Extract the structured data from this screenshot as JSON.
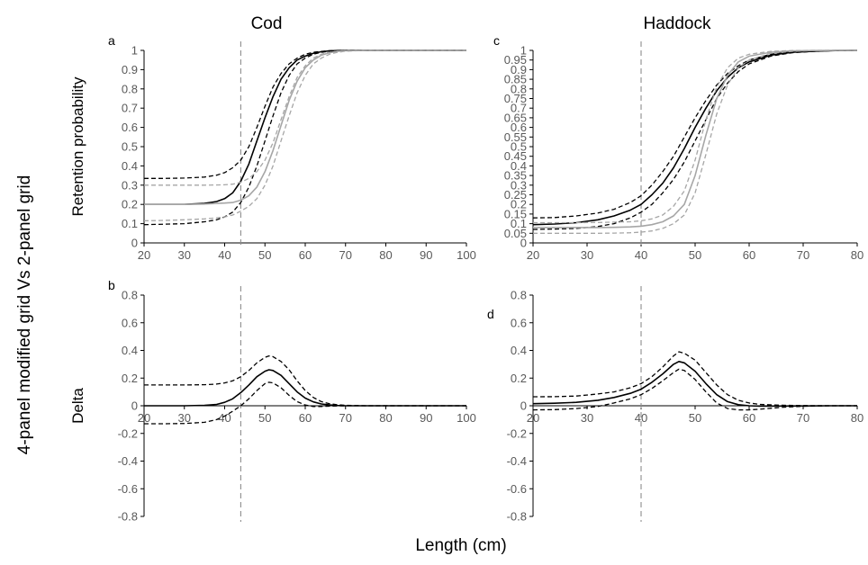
{
  "figure": {
    "side_label": "4-panel modified grid Vs 2-panel grid",
    "xlabel": "Length (cm)",
    "column_titles": [
      "Cod",
      "Haddock"
    ]
  },
  "chart_data": [
    {
      "id": "a",
      "type": "line",
      "panel_label": "a",
      "title": "Cod",
      "ylabel": "Retention probability",
      "xlabel": "",
      "xlim": [
        20,
        100
      ],
      "ylim": [
        0,
        1
      ],
      "xticks": [
        20,
        30,
        40,
        50,
        60,
        70,
        80,
        90,
        100
      ],
      "yticks": [
        0,
        0.1,
        0.2,
        0.3,
        0.4,
        0.5,
        0.6,
        0.7,
        0.8,
        0.9,
        1
      ],
      "ytick_labels": [
        "0",
        "0.1",
        "0.2",
        "0.3",
        "0.4",
        "0.5",
        "0.6",
        "0.7",
        "0.8",
        "0.9",
        "1"
      ],
      "vline": 44,
      "grid": false,
      "x": [
        20,
        25,
        30,
        35,
        38,
        40,
        42,
        44,
        46,
        48,
        50,
        52,
        54,
        56,
        58,
        60,
        62,
        64,
        66,
        68,
        70,
        75,
        80,
        90,
        100
      ],
      "series": [
        {
          "style": "black-solid",
          "values": [
            0.2,
            0.2,
            0.2,
            0.205,
            0.215,
            0.23,
            0.26,
            0.32,
            0.41,
            0.53,
            0.65,
            0.76,
            0.85,
            0.91,
            0.95,
            0.97,
            0.985,
            0.993,
            0.997,
            0.999,
            1,
            1,
            1,
            1,
            1
          ]
        },
        {
          "style": "black-dashed",
          "values": [
            0.335,
            0.335,
            0.337,
            0.342,
            0.352,
            0.365,
            0.39,
            0.43,
            0.5,
            0.6,
            0.71,
            0.81,
            0.88,
            0.93,
            0.96,
            0.98,
            0.99,
            0.995,
            0.998,
            0.999,
            1,
            1,
            1,
            1,
            1
          ]
        },
        {
          "style": "black-dashed",
          "values": [
            0.095,
            0.097,
            0.1,
            0.11,
            0.12,
            0.135,
            0.16,
            0.21,
            0.29,
            0.4,
            0.53,
            0.66,
            0.78,
            0.87,
            0.93,
            0.96,
            0.98,
            0.99,
            0.995,
            0.998,
            1,
            1,
            1,
            1,
            1
          ]
        },
        {
          "style": "gray-solid",
          "values": [
            0.2,
            0.2,
            0.2,
            0.202,
            0.205,
            0.207,
            0.21,
            0.222,
            0.245,
            0.29,
            0.37,
            0.48,
            0.61,
            0.74,
            0.84,
            0.91,
            0.95,
            0.975,
            0.988,
            0.995,
            0.998,
            1,
            1,
            1,
            1
          ]
        },
        {
          "style": "gray-dashed",
          "values": [
            0.3,
            0.3,
            0.3,
            0.3,
            0.301,
            0.302,
            0.305,
            0.315,
            0.335,
            0.37,
            0.43,
            0.52,
            0.64,
            0.76,
            0.86,
            0.92,
            0.96,
            0.98,
            0.99,
            0.996,
            0.999,
            1,
            1,
            1,
            1
          ]
        },
        {
          "style": "gray-dashed",
          "values": [
            0.115,
            0.117,
            0.12,
            0.125,
            0.13,
            0.135,
            0.145,
            0.165,
            0.19,
            0.23,
            0.3,
            0.4,
            0.53,
            0.66,
            0.78,
            0.87,
            0.93,
            0.96,
            0.98,
            0.99,
            0.996,
            1,
            1,
            1,
            1
          ]
        }
      ]
    },
    {
      "id": "b",
      "type": "line",
      "panel_label": "b",
      "title": "",
      "ylabel": "Delta",
      "xlabel": "",
      "xlim": [
        20,
        100
      ],
      "ylim": [
        -0.8,
        0.8
      ],
      "xticks": [
        20,
        30,
        40,
        50,
        60,
        70,
        80,
        90,
        100
      ],
      "yticks": [
        -0.8,
        -0.6,
        -0.4,
        -0.2,
        0,
        0.2,
        0.4,
        0.6,
        0.8
      ],
      "ytick_labels": [
        "-0.8",
        "-0.6",
        "-0.4",
        "-0.2",
        "0",
        "0.2",
        "0.4",
        "0.6",
        "0.8"
      ],
      "vline": 44,
      "grid": false,
      "x": [
        20,
        25,
        30,
        35,
        38,
        40,
        42,
        44,
        46,
        48,
        50,
        51,
        52,
        54,
        56,
        58,
        60,
        62,
        64,
        66,
        68,
        70,
        75,
        80,
        90,
        100
      ],
      "series": [
        {
          "style": "black-solid",
          "values": [
            0,
            0,
            0,
            0.003,
            0.01,
            0.025,
            0.05,
            0.095,
            0.15,
            0.21,
            0.25,
            0.26,
            0.255,
            0.22,
            0.16,
            0.1,
            0.055,
            0.028,
            0.013,
            0.006,
            0.002,
            0,
            0,
            0,
            0,
            0
          ]
        },
        {
          "style": "black-dashed",
          "values": [
            0.15,
            0.15,
            0.15,
            0.152,
            0.157,
            0.165,
            0.18,
            0.21,
            0.255,
            0.31,
            0.35,
            0.36,
            0.355,
            0.32,
            0.26,
            0.18,
            0.11,
            0.06,
            0.03,
            0.015,
            0.007,
            0.003,
            0,
            0,
            0,
            0
          ]
        },
        {
          "style": "black-dashed",
          "values": [
            -0.13,
            -0.13,
            -0.128,
            -0.12,
            -0.1,
            -0.075,
            -0.04,
            0,
            0.05,
            0.11,
            0.16,
            0.17,
            0.165,
            0.13,
            0.075,
            0.03,
            0.005,
            -0.005,
            -0.005,
            -0.003,
            -0.001,
            0,
            0,
            0,
            0,
            0
          ]
        }
      ]
    },
    {
      "id": "c",
      "type": "line",
      "panel_label": "c",
      "title": "Haddock",
      "ylabel": "",
      "xlabel": "",
      "xlim": [
        20,
        80
      ],
      "ylim": [
        0,
        1
      ],
      "xticks": [
        20,
        30,
        40,
        50,
        60,
        70,
        80
      ],
      "yticks": [
        0,
        0.05,
        0.1,
        0.15,
        0.2,
        0.25,
        0.3,
        0.35,
        0.4,
        0.45,
        0.5,
        0.55,
        0.6,
        0.65,
        0.7,
        0.75,
        0.8,
        0.85,
        0.9,
        0.95,
        1
      ],
      "ytick_labels": [
        "0",
        "0.05",
        "0.1",
        "0.15",
        "0.2",
        "0.25",
        "0.3",
        "0.35",
        "0.4",
        "0.45",
        "0.5",
        "0.55",
        "0.6",
        "0.65",
        "0.7",
        "0.75",
        "0.8",
        "0.85",
        "0.9",
        "0.95",
        "1"
      ],
      "vline": 40,
      "grid": false,
      "x": [
        20,
        24,
        28,
        32,
        35,
        38,
        40,
        42,
        44,
        46,
        48,
        50,
        52,
        54,
        56,
        58,
        60,
        64,
        68,
        72,
        76,
        80
      ],
      "series": [
        {
          "style": "black-solid",
          "values": [
            0.095,
            0.098,
            0.105,
            0.12,
            0.14,
            0.17,
            0.2,
            0.25,
            0.31,
            0.39,
            0.49,
            0.6,
            0.7,
            0.79,
            0.86,
            0.91,
            0.94,
            0.975,
            0.99,
            0.996,
            0.999,
            1
          ]
        },
        {
          "style": "black-dashed",
          "values": [
            0.13,
            0.132,
            0.14,
            0.155,
            0.175,
            0.21,
            0.245,
            0.3,
            0.37,
            0.45,
            0.55,
            0.65,
            0.74,
            0.82,
            0.88,
            0.92,
            0.95,
            0.98,
            0.993,
            0.997,
            0.999,
            1
          ]
        },
        {
          "style": "black-dashed",
          "values": [
            0.07,
            0.072,
            0.075,
            0.085,
            0.1,
            0.13,
            0.16,
            0.2,
            0.26,
            0.33,
            0.42,
            0.53,
            0.64,
            0.75,
            0.83,
            0.89,
            0.93,
            0.97,
            0.988,
            0.995,
            0.999,
            1
          ]
        },
        {
          "style": "gray-solid",
          "values": [
            0.08,
            0.08,
            0.08,
            0.08,
            0.081,
            0.083,
            0.087,
            0.095,
            0.11,
            0.14,
            0.2,
            0.35,
            0.56,
            0.75,
            0.87,
            0.94,
            0.97,
            0.99,
            0.997,
            0.999,
            1,
            1
          ]
        },
        {
          "style": "gray-dashed",
          "values": [
            0.105,
            0.105,
            0.105,
            0.106,
            0.108,
            0.11,
            0.115,
            0.125,
            0.145,
            0.19,
            0.27,
            0.43,
            0.64,
            0.81,
            0.91,
            0.96,
            0.98,
            0.995,
            0.999,
            1,
            1,
            1
          ]
        },
        {
          "style": "gray-dashed",
          "values": [
            0.05,
            0.05,
            0.05,
            0.05,
            0.051,
            0.053,
            0.056,
            0.062,
            0.075,
            0.1,
            0.145,
            0.26,
            0.46,
            0.67,
            0.82,
            0.91,
            0.95,
            0.985,
            0.995,
            0.999,
            1,
            1
          ]
        }
      ]
    },
    {
      "id": "d",
      "type": "line",
      "panel_label": "d",
      "title": "",
      "ylabel": "",
      "xlabel": "",
      "xlim": [
        20,
        80
      ],
      "ylim": [
        -0.8,
        0.8
      ],
      "xticks": [
        20,
        30,
        40,
        50,
        60,
        70,
        80
      ],
      "yticks": [
        -0.8,
        -0.6,
        -0.4,
        -0.2,
        0,
        0.2,
        0.4,
        0.6,
        0.8
      ],
      "ytick_labels": [
        "-0.8",
        "-0.6",
        "-0.4",
        "-0.2",
        "0",
        "0.2",
        "0.4",
        "0.6",
        "0.8"
      ],
      "vline": 40,
      "grid": false,
      "x": [
        20,
        24,
        28,
        32,
        35,
        38,
        40,
        42,
        44,
        46,
        47,
        48,
        50,
        52,
        54,
        56,
        58,
        60,
        62,
        66,
        70,
        75,
        80
      ],
      "series": [
        {
          "style": "black-solid",
          "values": [
            0.015,
            0.018,
            0.025,
            0.04,
            0.06,
            0.09,
            0.12,
            0.17,
            0.23,
            0.3,
            0.32,
            0.31,
            0.25,
            0.16,
            0.08,
            0.03,
            0.008,
            0,
            -0.003,
            -0.002,
            -0.001,
            0,
            0
          ]
        },
        {
          "style": "black-dashed",
          "values": [
            0.065,
            0.066,
            0.07,
            0.085,
            0.1,
            0.13,
            0.16,
            0.21,
            0.28,
            0.36,
            0.39,
            0.38,
            0.33,
            0.24,
            0.15,
            0.08,
            0.04,
            0.02,
            0.01,
            0.004,
            0.001,
            0,
            0
          ]
        },
        {
          "style": "black-dashed",
          "values": [
            -0.03,
            -0.028,
            -0.02,
            -0.005,
            0.02,
            0.05,
            0.08,
            0.125,
            0.18,
            0.24,
            0.265,
            0.255,
            0.19,
            0.1,
            0.02,
            -0.02,
            -0.03,
            -0.03,
            -0.025,
            -0.012,
            -0.004,
            0,
            0
          ]
        }
      ]
    }
  ]
}
